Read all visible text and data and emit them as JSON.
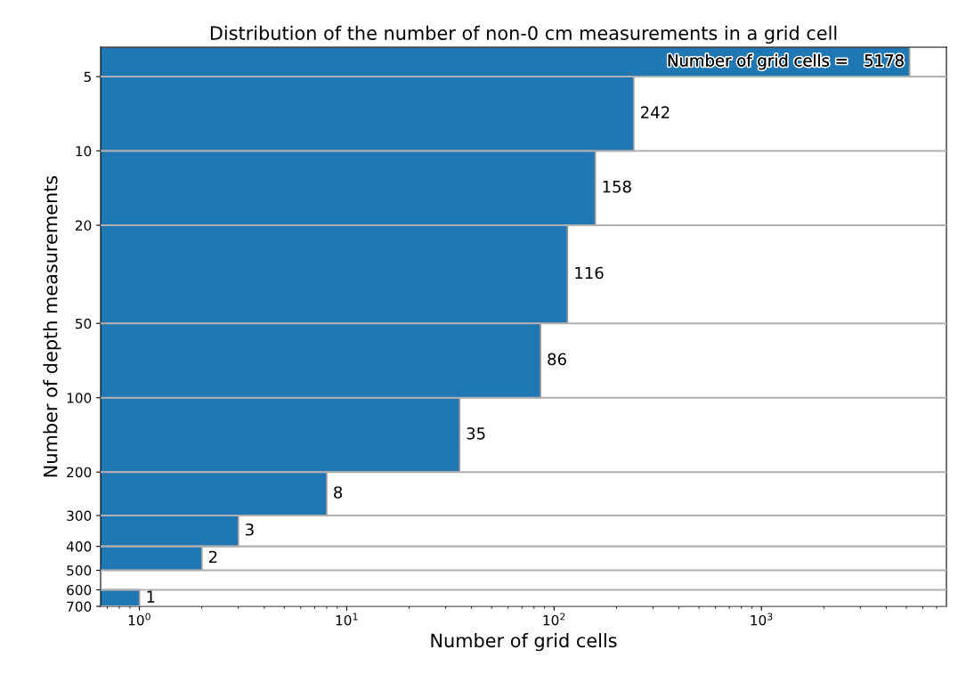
{
  "chart_data": {
    "type": "histogram",
    "orientation": "horizontal",
    "title": "Distribution of the number of non-0 cm measurements in a grid cell",
    "xlabel": "Number of grid cells",
    "ylabel": "Number of depth measurements",
    "bins": [
      3.8,
      5,
      10,
      20,
      50,
      100,
      200,
      300,
      400,
      500,
      600,
      700
    ],
    "values": [
      5178,
      242,
      158,
      116,
      86,
      35,
      8,
      3,
      2,
      null,
      1
    ],
    "value_labels": [
      "Number of grid cells =   5178",
      "242",
      "158",
      "116",
      "86",
      "35",
      "8",
      "3",
      "2",
      null,
      "1"
    ],
    "color": "#1f77b4",
    "log": "xy",
    "grid": "y",
    "xlim": [
      0.65,
      7800
    ],
    "xticks": [
      {
        "value": 1,
        "label": "10$^{0}$"
      },
      {
        "value": 10,
        "label": "10$^{1}$"
      },
      {
        "value": 100,
        "label": "10$^{2}$"
      },
      {
        "value": 1000,
        "label": "10$^{3}$"
      }
    ],
    "ylim": [
      700,
      3.8
    ],
    "yticks": [
      5,
      10,
      20,
      50,
      100,
      200,
      300,
      400,
      500,
      600,
      700
    ]
  }
}
